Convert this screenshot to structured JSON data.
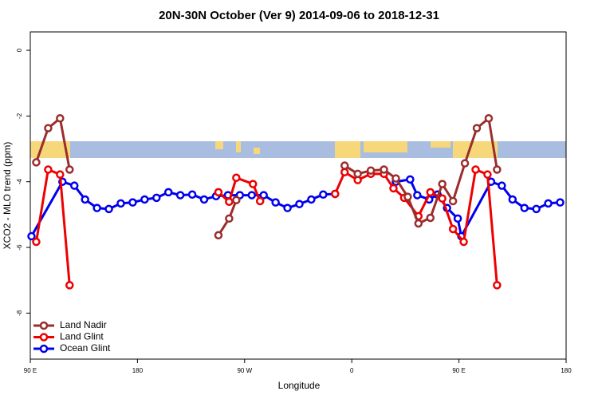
{
  "chart_data": {
    "type": "line",
    "title": "20N-30N October (Ver 9)   2014-09-06 to 2018-12-31",
    "x_label": "Longitude",
    "y_label": "XCO2 - MLO trend (ppm)",
    "xlim": [
      90,
      540
    ],
    "ylim": [
      -9.4,
      0.56
    ],
    "xticks": [
      {
        "value": 90,
        "label": "90 E"
      },
      {
        "value": 180,
        "label": "180"
      },
      {
        "value": 270,
        "label": "90 W"
      },
      {
        "value": 360,
        "label": "0"
      },
      {
        "value": 450,
        "label": "90 E"
      },
      {
        "value": 540,
        "label": "180"
      }
    ],
    "yticks": [
      0,
      -2,
      -4,
      -6,
      -8
    ],
    "legend": "bottom-left",
    "series": [
      {
        "name": "Land Nadir",
        "color": "#9b2d2d",
        "x": [
          95,
          105,
          115,
          123,
          null,
          248,
          257,
          263,
          null,
          354,
          365,
          376,
          387,
          397,
          407,
          416,
          426,
          436,
          445,
          455,
          465,
          475,
          482
        ],
        "values": [
          -3.41,
          -2.37,
          -2.07,
          -3.63,
          null,
          -5.63,
          -5.12,
          -4.56,
          null,
          -3.51,
          -3.76,
          -3.66,
          -3.63,
          -3.9,
          -4.46,
          -5.27,
          -5.1,
          -4.07,
          -4.59,
          -3.44,
          -2.37,
          -2.07,
          -3.63
        ]
      },
      {
        "name": "Land Glint",
        "color": "#ee0000",
        "x": [
          95,
          105,
          115,
          123,
          null,
          248,
          257,
          263,
          277,
          283,
          null,
          346,
          354,
          365,
          376,
          387,
          395,
          404,
          416,
          426,
          436,
          445,
          454,
          464,
          474,
          482
        ],
        "values": [
          -5.83,
          -3.63,
          -3.78,
          -7.15,
          null,
          -4.32,
          -4.61,
          -3.88,
          -4.07,
          -4.59,
          null,
          -4.37,
          -3.71,
          -3.95,
          -3.76,
          -3.76,
          -4.2,
          -4.49,
          -5.05,
          -4.32,
          -4.51,
          -5.44,
          -5.83,
          -3.63,
          -3.78,
          -7.15
        ]
      },
      {
        "name": "Ocean Glint",
        "color": "#0000ee",
        "x": [
          91,
          117,
          127,
          136,
          146,
          156,
          166,
          176,
          186,
          196,
          206,
          216,
          226,
          236,
          246,
          256,
          266,
          276,
          286,
          296,
          306,
          316,
          326,
          336,
          346,
          null,
          397,
          409,
          415,
          425,
          432,
          440,
          449,
          452,
          477,
          486,
          495,
          505,
          515,
          525,
          535
        ],
        "values": [
          -5.66,
          -4.0,
          -4.12,
          -4.54,
          -4.8,
          -4.83,
          -4.66,
          -4.63,
          -4.54,
          -4.49,
          -4.32,
          -4.41,
          -4.39,
          -4.54,
          -4.44,
          -4.41,
          -4.41,
          -4.41,
          -4.41,
          -4.63,
          -4.8,
          -4.68,
          -4.54,
          -4.39,
          -4.37,
          null,
          -4.0,
          -3.93,
          -4.41,
          -4.54,
          -4.39,
          -4.8,
          -5.12,
          -5.66,
          -4.0,
          -4.12,
          -4.54,
          -4.8,
          -4.83,
          -4.66,
          -4.63
        ]
      }
    ]
  }
}
